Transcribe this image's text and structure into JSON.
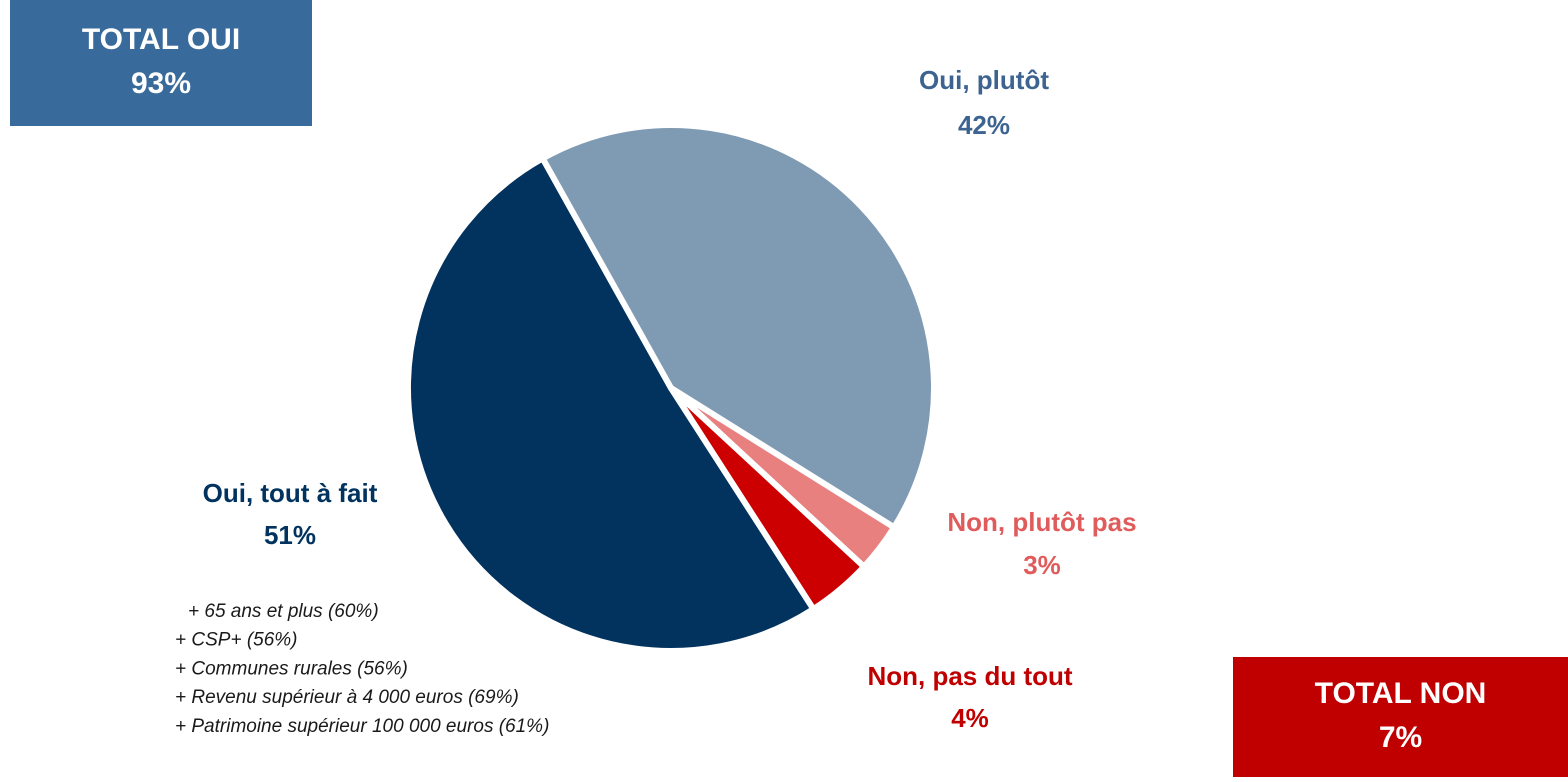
{
  "chart_data": {
    "type": "pie",
    "categories": [
      "Oui, tout à fait",
      "Oui, plutôt",
      "Non, plutôt pas",
      "Non, pas du tout"
    ],
    "values": [
      51,
      42,
      3,
      4
    ],
    "value_labels": [
      "51%",
      "42%",
      "3%",
      "4%"
    ],
    "colors": [
      "#02335f",
      "#7f9ab3",
      "#e88080",
      "#cc0000"
    ],
    "label_colors": [
      "#02335f",
      "#3d6491",
      "#e05c5c",
      "#c00000"
    ],
    "totals": [
      {
        "label": "TOTAL OUI",
        "value_label": "93%",
        "color": "#386a9b"
      },
      {
        "label": "TOTAL NON",
        "value_label": "7%",
        "color": "#c00000"
      }
    ],
    "notes": [
      "+ 65 ans et plus (60%)",
      "+ CSP+ (56%)",
      "+ Communes rurales (56%)",
      "+ Revenu supérieur à 4 000 euros (69%)",
      "+ Patrimoine supérieur 100 000 euros (61%)"
    ]
  }
}
